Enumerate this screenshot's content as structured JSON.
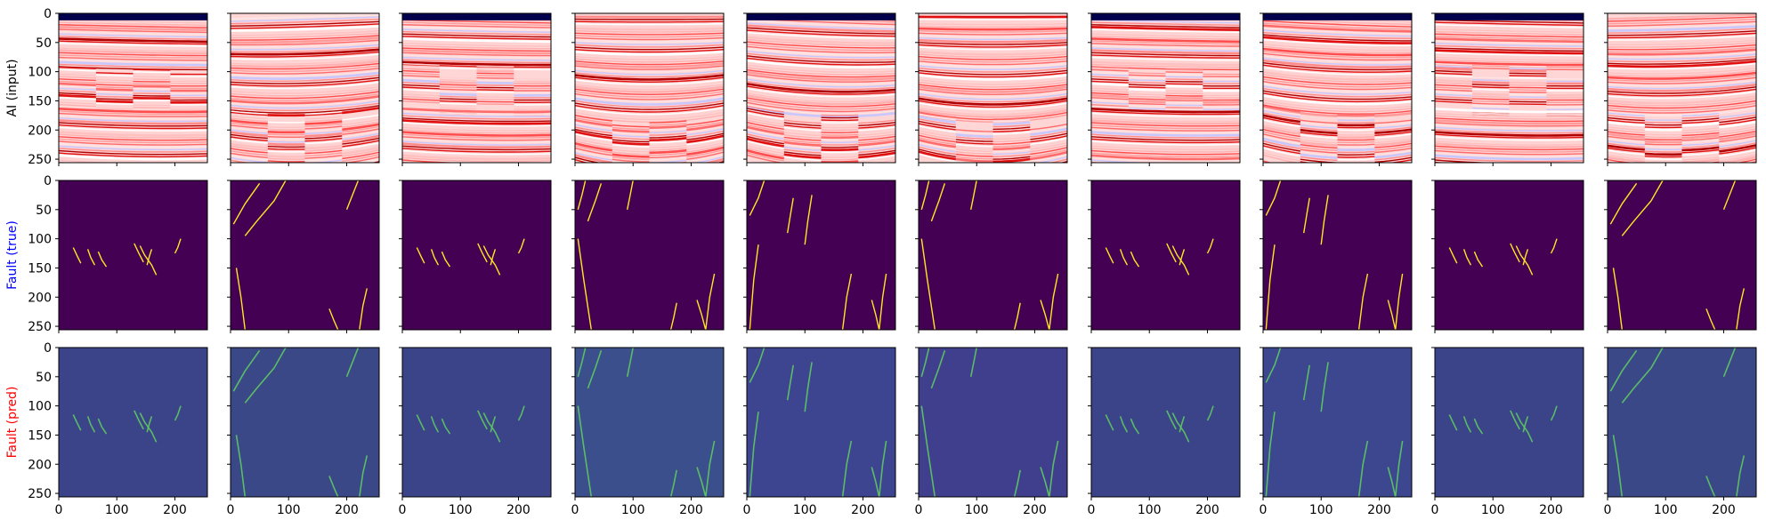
{
  "chart_data": {
    "type": "heatmap",
    "layout": "3 rows x 10 columns of image panels",
    "rows": [
      {
        "label": "AI (input)",
        "label_color": "#000000",
        "colormap": "seismic"
      },
      {
        "label": "Fault (true)",
        "label_color": "#0000ff",
        "colormap": "viridis-binary"
      },
      {
        "label": "Fault (pred)",
        "label_color": "#ff0000",
        "colormap": "viridis-probability"
      }
    ],
    "columns": 10,
    "xlim": [
      0,
      256
    ],
    "ylim": [
      256,
      0
    ],
    "xticks": [
      0,
      100,
      200
    ],
    "yticks": [
      0,
      50,
      100,
      150,
      200,
      250
    ],
    "column_variants": [
      "A",
      "B",
      "A",
      "C",
      "D",
      "C",
      "A",
      "D",
      "A",
      "B"
    ],
    "column_pred_backgrounds": [
      "#3b4488",
      "#3a4888",
      "#3b4488",
      "#3a4f8c",
      "#3d4590",
      "#403f8e",
      "#3b4488",
      "#3c4790",
      "#3b4488",
      "#3a4888"
    ],
    "variants": {
      "A": {
        "has_top_band": true,
        "horizon_tilt": 0.02,
        "horizon_bulge": 6,
        "offset_zone": [
          95,
          165
        ],
        "faults": [
          [
            [
              25,
              115
            ],
            [
              32,
              130
            ],
            [
              38,
              142
            ]
          ],
          [
            [
              50,
              118
            ],
            [
              55,
              132
            ],
            [
              62,
              145
            ]
          ],
          [
            [
              68,
              122
            ],
            [
              74,
              136
            ],
            [
              82,
              148
            ]
          ],
          [
            [
              130,
              108
            ],
            [
              138,
              125
            ],
            [
              146,
              140
            ]
          ],
          [
            [
              140,
              112
            ],
            [
              148,
              128
            ],
            [
              160,
              145
            ],
            [
              168,
              162
            ]
          ],
          [
            [
              160,
              118
            ],
            [
              156,
              130
            ],
            [
              152,
              145
            ]
          ],
          [
            [
              210,
              100
            ],
            [
              205,
              115
            ],
            [
              200,
              125
            ]
          ]
        ]
      },
      "B": {
        "has_top_band": false,
        "horizon_tilt": -0.03,
        "horizon_bulge": 22,
        "offset_zone": [
          170,
          256
        ],
        "faults": [
          [
            [
              5,
              75
            ],
            [
              25,
              40
            ],
            [
              50,
              5
            ]
          ],
          [
            [
              25,
              95
            ],
            [
              45,
              70
            ],
            [
              75,
              35
            ],
            [
              95,
              0
            ]
          ],
          [
            [
              10,
              150
            ],
            [
              18,
              200
            ],
            [
              25,
              256
            ]
          ],
          [
            [
              170,
              220
            ],
            [
              178,
              240
            ],
            [
              185,
              256
            ]
          ],
          [
            [
              235,
              185
            ],
            [
              228,
              215
            ],
            [
              222,
              256
            ]
          ],
          [
            [
              200,
              50
            ],
            [
              210,
              25
            ],
            [
              220,
              0
            ]
          ]
        ]
      },
      "C": {
        "has_top_band": false,
        "horizon_tilt": 0.0,
        "horizon_bulge": 30,
        "offset_zone": [
          175,
          256
        ],
        "faults": [
          [
            [
              5,
              50
            ],
            [
              12,
              25
            ],
            [
              18,
              0
            ]
          ],
          [
            [
              22,
              70
            ],
            [
              35,
              35
            ],
            [
              45,
              5
            ]
          ],
          [
            [
              5,
              100
            ],
            [
              15,
              170
            ],
            [
              28,
              256
            ]
          ],
          [
            [
              90,
              50
            ],
            [
              95,
              25
            ],
            [
              100,
              0
            ]
          ],
          [
            [
              175,
              210
            ],
            [
              170,
              235
            ],
            [
              165,
              256
            ]
          ],
          [
            [
              210,
              205
            ],
            [
              218,
              230
            ],
            [
              225,
              256
            ]
          ],
          [
            [
              240,
              160
            ],
            [
              232,
              200
            ],
            [
              225,
              256
            ]
          ]
        ]
      },
      "D": {
        "has_top_band": true,
        "horizon_tilt": 0.04,
        "horizon_bulge": 26,
        "offset_zone": [
          170,
          256
        ],
        "faults": [
          [
            [
              5,
              60
            ],
            [
              20,
              30
            ],
            [
              30,
              0
            ]
          ],
          [
            [
              20,
              110
            ],
            [
              12,
              170
            ],
            [
              5,
              256
            ]
          ],
          [
            [
              70,
              90
            ],
            [
              75,
              60
            ],
            [
              80,
              30
            ]
          ],
          [
            [
              100,
              110
            ],
            [
              105,
              70
            ],
            [
              112,
              25
            ]
          ],
          [
            [
              180,
              160
            ],
            [
              172,
              200
            ],
            [
              165,
              256
            ]
          ],
          [
            [
              215,
              205
            ],
            [
              222,
              230
            ],
            [
              228,
              256
            ]
          ],
          [
            [
              240,
              160
            ],
            [
              234,
              200
            ],
            [
              228,
              256
            ]
          ]
        ]
      }
    }
  }
}
